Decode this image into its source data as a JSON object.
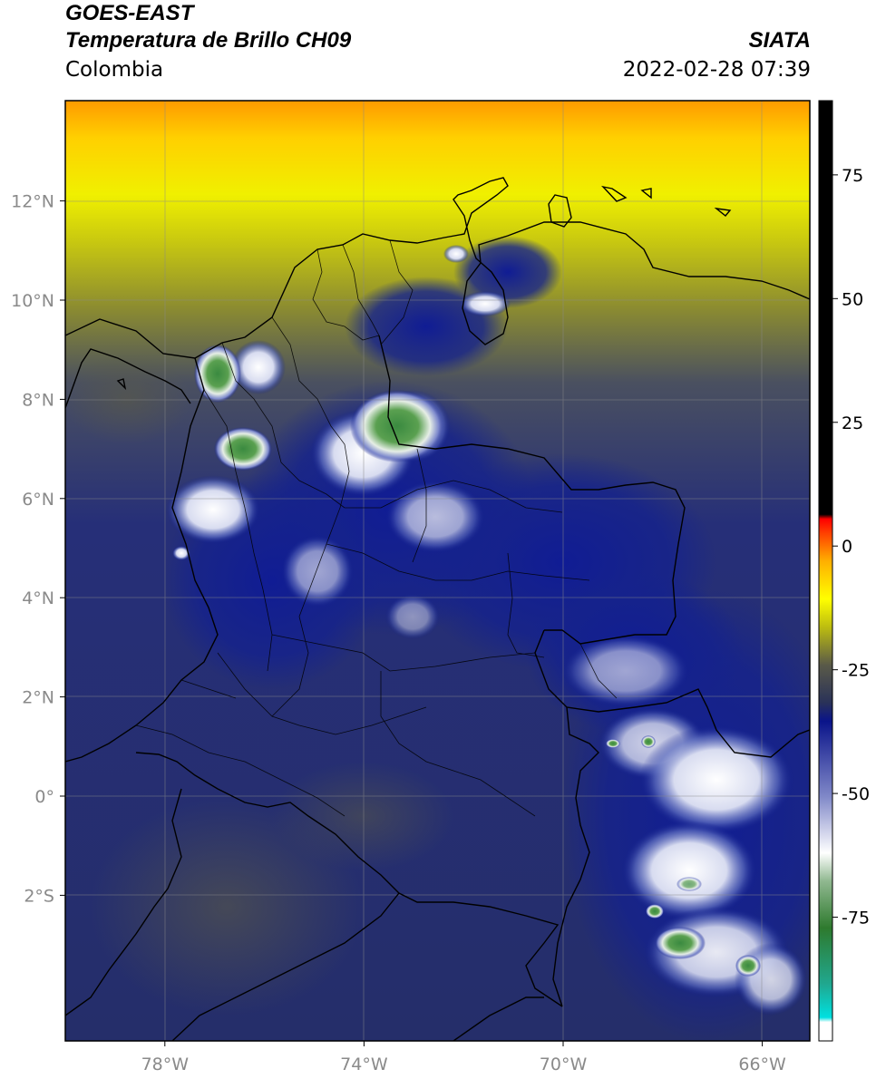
{
  "header": {
    "satellite": "GOES-EAST",
    "product": "Temperatura de Brillo CH09",
    "region": "Colombia",
    "organization": "SIATA",
    "datetime": "2022-02-28 07:39"
  },
  "map": {
    "lat_ticks": [
      {
        "value": 12,
        "label": "12°N"
      },
      {
        "value": 10,
        "label": "10°N"
      },
      {
        "value": 8,
        "label": "8°N"
      },
      {
        "value": 6,
        "label": "6°N"
      },
      {
        "value": 4,
        "label": "4°N"
      },
      {
        "value": 2,
        "label": "2°N"
      },
      {
        "value": 0,
        "label": "0°"
      },
      {
        "value": -2,
        "label": "2°S"
      }
    ],
    "lon_ticks": [
      {
        "value": -78,
        "label": "78°W"
      },
      {
        "value": -74,
        "label": "74°W"
      },
      {
        "value": -70,
        "label": "70°W"
      },
      {
        "value": -66,
        "label": "66°W"
      }
    ],
    "gridlines": true
  },
  "colorbar": {
    "ticks": [
      {
        "value": 75,
        "label": "75"
      },
      {
        "value": 50,
        "label": "50"
      },
      {
        "value": 25,
        "label": "25"
      },
      {
        "value": 0,
        "label": "0"
      },
      {
        "value": -25,
        "label": "-25"
      },
      {
        "value": -50,
        "label": "-50"
      },
      {
        "value": -75,
        "label": "-75"
      }
    ],
    "palette": [
      "#ffffff",
      "#00d8d8",
      "#2f8f3f",
      "#e8f0e8",
      "#8890c8",
      "#0c1a8a",
      "#2e3a5a",
      "#6a6a40",
      "#c8c800",
      "#ffff00",
      "#ffa000",
      "#ff2000",
      "#000000"
    ]
  }
}
